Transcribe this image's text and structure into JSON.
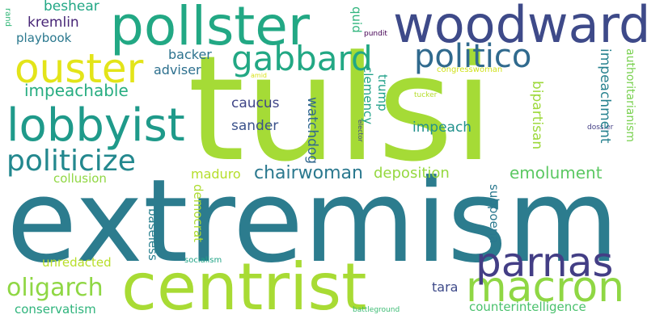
{
  "words": {
    "tulsi": {
      "text": "tulsi",
      "color": "#a5db36"
    },
    "extremism": {
      "text": "extremism",
      "color": "#2c7c8e"
    },
    "pollster": {
      "text": "pollster",
      "color": "#22a884"
    },
    "woodward": {
      "text": "woodward",
      "color": "#3e4a89"
    },
    "lobbyist": {
      "text": "lobbyist",
      "color": "#1f9a8a"
    },
    "ouster": {
      "text": "ouster",
      "color": "#e3e419"
    },
    "centrist": {
      "text": "centrist",
      "color": "#a8db34"
    },
    "macron": {
      "text": "macron",
      "color": "#8fd744"
    },
    "parnas": {
      "text": "parnas",
      "color": "#433e85"
    },
    "gabbard": {
      "text": "gabbard",
      "color": "#22a884"
    },
    "politico": {
      "text": "politico",
      "color": "#306a8e"
    },
    "politicize": {
      "text": "politicize",
      "color": "#23888e"
    },
    "oligarch": {
      "text": "oligarch",
      "color": "#8fd744"
    },
    "chairwoman": {
      "text": "chairwoman",
      "color": "#2a788e"
    },
    "impeachable": {
      "text": "impeachable",
      "color": "#27ad81"
    },
    "emolument": {
      "text": "emolument",
      "color": "#5cc863"
    },
    "deposition": {
      "text": "deposition",
      "color": "#95d840"
    },
    "caucus": {
      "text": "caucus",
      "color": "#404688"
    },
    "sander": {
      "text": "sander",
      "color": "#3b528b"
    },
    "impeach": {
      "text": "impeach",
      "color": "#21918c"
    },
    "beshear": {
      "text": "beshear",
      "color": "#22a785"
    },
    "kremlin": {
      "text": "kremlin",
      "color": "#482677"
    },
    "playbook": {
      "text": "playbook",
      "color": "#2a788e"
    },
    "backer": {
      "text": "backer",
      "color": "#2c728e"
    },
    "adviser": {
      "text": "adviser",
      "color": "#2d708e"
    },
    "collusion": {
      "text": "collusion",
      "color": "#90d743"
    },
    "maduro": {
      "text": "maduro",
      "color": "#b5de2b"
    },
    "unredacted": {
      "text": "unredacted",
      "color": "#b8de29"
    },
    "conservatism": {
      "text": "conservatism",
      "color": "#2fb47c"
    },
    "counterintelligence": {
      "text": "counterintelligence",
      "color": "#4ac16d"
    },
    "tara": {
      "text": "tara",
      "color": "#3e4a89"
    },
    "socialism": {
      "text": "socialism",
      "color": "#20a386"
    },
    "battleground": {
      "text": "battleground",
      "color": "#3dbc74"
    },
    "congresswoman": {
      "text": "congresswoman",
      "color": "#d0e11c"
    },
    "pundit": {
      "text": "pundit",
      "color": "#440154"
    },
    "amid": {
      "text": "amid",
      "color": "#d8e219"
    },
    "tucker": {
      "text": "tucker",
      "color": "#b5de2b"
    },
    "elector": {
      "text": "elector",
      "color": "#404688"
    },
    "dossier": {
      "text": "dossier",
      "color": "#433e85"
    },
    "rand": {
      "text": "rand",
      "color": "#35b779"
    },
    "quid": {
      "text": "quid",
      "color": "#2fb47c"
    },
    "clemency": {
      "text": "clemency",
      "color": "#1fa188"
    },
    "trump": {
      "text": "trump",
      "color": "#1fa088"
    },
    "watchdog": {
      "text": "watchdog",
      "color": "#31688e"
    },
    "bipartisan": {
      "text": "bipartisan",
      "color": "#9dd93b"
    },
    "impeachment": {
      "text": "impeachment",
      "color": "#26818e"
    },
    "authoritarianism": {
      "text": "authoritarianism",
      "color": "#7ad151"
    },
    "democrat": {
      "text": "democrat",
      "color": "#addc30"
    },
    "baseless": {
      "text": "baseless",
      "color": "#277f8e"
    },
    "subpoena": {
      "text": "subpoena",
      "color": "#2a788e"
    }
  }
}
